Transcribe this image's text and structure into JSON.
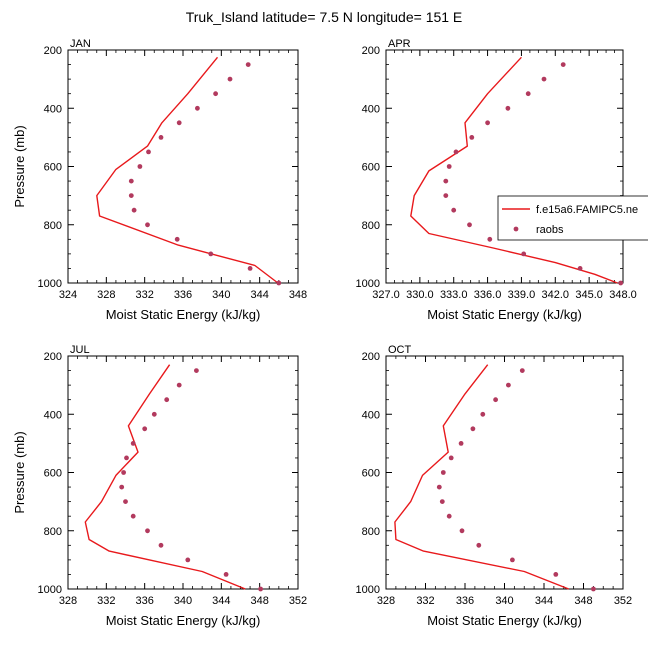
{
  "title": "Truk_Island  latitude= 7.5 N longitude= 151 E",
  "legend": {
    "model_label": "f.e15a6.FAMIPC5.ne",
    "obs_label": "raobs"
  },
  "colors": {
    "model": "#e8191c",
    "obs": "#b23a5e"
  },
  "chart_data": [
    {
      "type": "line",
      "panel": "JAN",
      "xlabel": "Moist Static Energy (kJ/kg)",
      "ylabel": "Pressure (mb)",
      "xlim": [
        324,
        348
      ],
      "ylim": [
        200,
        1000
      ],
      "y_inverted": true,
      "xticks": [
        324,
        328,
        332,
        336,
        340,
        344,
        348
      ],
      "xtick_labels": [
        "324",
        "328",
        "332",
        "336",
        "340",
        "344",
        "348"
      ],
      "yticks": [
        200,
        400,
        600,
        800,
        1000
      ],
      "ytick_labels": [
        "200",
        "400",
        "600",
        "800",
        "1000"
      ],
      "series": [
        {
          "name": "f.e15a6.FAMIPC5.ne",
          "kind": "line",
          "points": [
            [
              339.6,
              225
            ],
            [
              336.5,
              350
            ],
            [
              333.8,
              450
            ],
            [
              332.3,
              530
            ],
            [
              329.0,
              610
            ],
            [
              327.0,
              700
            ],
            [
              327.3,
              770
            ],
            [
              335.5,
              870
            ],
            [
              343.5,
              940
            ],
            [
              345.9,
              1000
            ]
          ]
        },
        {
          "name": "raobs",
          "kind": "scatter",
          "points": [
            [
              342.8,
              250
            ],
            [
              340.9,
              300
            ],
            [
              339.4,
              350
            ],
            [
              337.5,
              400
            ],
            [
              335.6,
              450
            ],
            [
              333.7,
              500
            ],
            [
              332.4,
              550
            ],
            [
              331.5,
              600
            ],
            [
              330.6,
              650
            ],
            [
              330.6,
              700
            ],
            [
              330.9,
              750
            ],
            [
              332.3,
              800
            ],
            [
              335.4,
              850
            ],
            [
              338.9,
              900
            ],
            [
              343.0,
              950
            ],
            [
              346.0,
              1000
            ]
          ]
        }
      ]
    },
    {
      "type": "line",
      "panel": "APR",
      "xlabel": "Moist Static Energy (kJ/kg)",
      "ylabel": "",
      "xlim": [
        327,
        348
      ],
      "ylim": [
        200,
        1000
      ],
      "y_inverted": true,
      "xticks": [
        327,
        330,
        333,
        336,
        339,
        342,
        345,
        348
      ],
      "xtick_labels": [
        "327.0",
        "330.0",
        "333.0",
        "336.0",
        "339.0",
        "342.0",
        "345.0",
        "348.0"
      ],
      "yticks": [
        200,
        400,
        600,
        800,
        1000
      ],
      "ytick_labels": [
        "200",
        "400",
        "600",
        "800",
        "1000"
      ],
      "series": [
        {
          "name": "f.e15a6.FAMIPC5.ne",
          "kind": "line",
          "points": [
            [
              339.0,
              225
            ],
            [
              336.0,
              350
            ],
            [
              334.0,
              450
            ],
            [
              334.2,
              530
            ],
            [
              330.8,
              615
            ],
            [
              329.5,
              700
            ],
            [
              329.2,
              770
            ],
            [
              330.8,
              830
            ],
            [
              336.5,
              880
            ],
            [
              342.0,
              930
            ],
            [
              345.5,
              970
            ],
            [
              347.5,
              1000
            ]
          ]
        },
        {
          "name": "raobs",
          "kind": "scatter",
          "points": [
            [
              342.7,
              250
            ],
            [
              341.0,
              300
            ],
            [
              339.6,
              350
            ],
            [
              337.8,
              400
            ],
            [
              336.0,
              450
            ],
            [
              334.6,
              500
            ],
            [
              333.2,
              550
            ],
            [
              332.6,
              600
            ],
            [
              332.3,
              650
            ],
            [
              332.3,
              700
            ],
            [
              333.0,
              750
            ],
            [
              334.4,
              800
            ],
            [
              336.2,
              850
            ],
            [
              339.2,
              900
            ],
            [
              344.2,
              950
            ],
            [
              347.8,
              1000
            ]
          ]
        }
      ]
    },
    {
      "type": "line",
      "panel": "JUL",
      "xlabel": "Moist Static Energy (kJ/kg)",
      "ylabel": "Pressure (mb)",
      "xlim": [
        328,
        352
      ],
      "ylim": [
        200,
        1000
      ],
      "y_inverted": true,
      "xticks": [
        328,
        332,
        336,
        340,
        344,
        348,
        352
      ],
      "xtick_labels": [
        "328",
        "332",
        "336",
        "340",
        "344",
        "348",
        "352"
      ],
      "yticks": [
        200,
        400,
        600,
        800,
        1000
      ],
      "ytick_labels": [
        "200",
        "400",
        "600",
        "800",
        "1000"
      ],
      "series": [
        {
          "name": "f.e15a6.FAMIPC5.ne",
          "kind": "line",
          "points": [
            [
              338.6,
              230
            ],
            [
              336.5,
              330
            ],
            [
              334.3,
              440
            ],
            [
              335.3,
              530
            ],
            [
              333.0,
              610
            ],
            [
              331.5,
              700
            ],
            [
              329.8,
              770
            ],
            [
              330.2,
              830
            ],
            [
              332.3,
              870
            ],
            [
              342.0,
              940
            ],
            [
              346.5,
              1000
            ]
          ]
        },
        {
          "name": "raobs",
          "kind": "scatter",
          "points": [
            [
              341.4,
              250
            ],
            [
              339.6,
              300
            ],
            [
              338.3,
              350
            ],
            [
              337.0,
              400
            ],
            [
              336.0,
              450
            ],
            [
              334.8,
              500
            ],
            [
              334.1,
              550
            ],
            [
              333.8,
              600
            ],
            [
              333.6,
              650
            ],
            [
              334.0,
              700
            ],
            [
              334.8,
              750
            ],
            [
              336.3,
              800
            ],
            [
              337.7,
              850
            ],
            [
              340.5,
              900
            ],
            [
              344.5,
              950
            ],
            [
              348.1,
              1000
            ]
          ]
        }
      ]
    },
    {
      "type": "line",
      "panel": "OCT",
      "xlabel": "Moist Static Energy (kJ/kg)",
      "ylabel": "",
      "xlim": [
        328,
        352
      ],
      "ylim": [
        200,
        1000
      ],
      "y_inverted": true,
      "xticks": [
        328,
        332,
        336,
        340,
        344,
        348,
        352
      ],
      "xtick_labels": [
        "328",
        "332",
        "336",
        "340",
        "344",
        "348",
        "352"
      ],
      "yticks": [
        200,
        400,
        600,
        800,
        1000
      ],
      "ytick_labels": [
        "200",
        "400",
        "600",
        "800",
        "1000"
      ],
      "series": [
        {
          "name": "f.e15a6.FAMIPC5.ne",
          "kind": "line",
          "points": [
            [
              338.3,
              230
            ],
            [
              336.0,
              330
            ],
            [
              333.8,
              440
            ],
            [
              334.3,
              530
            ],
            [
              331.7,
              610
            ],
            [
              330.5,
              700
            ],
            [
              328.9,
              770
            ],
            [
              329.0,
              830
            ],
            [
              331.8,
              870
            ],
            [
              342.0,
              940
            ],
            [
              346.5,
              1000
            ]
          ]
        },
        {
          "name": "raobs",
          "kind": "scatter",
          "points": [
            [
              341.8,
              250
            ],
            [
              340.4,
              300
            ],
            [
              339.1,
              350
            ],
            [
              337.8,
              400
            ],
            [
              336.8,
              450
            ],
            [
              335.6,
              500
            ],
            [
              334.6,
              550
            ],
            [
              333.8,
              600
            ],
            [
              333.4,
              650
            ],
            [
              333.7,
              700
            ],
            [
              334.4,
              750
            ],
            [
              335.7,
              800
            ],
            [
              337.4,
              850
            ],
            [
              340.8,
              900
            ],
            [
              345.2,
              950
            ],
            [
              349.0,
              1000
            ]
          ]
        }
      ]
    }
  ]
}
